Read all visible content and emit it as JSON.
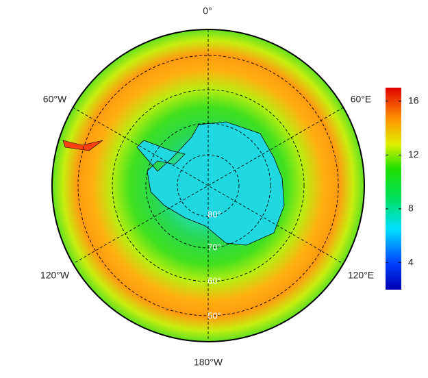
{
  "map": {
    "longitude_labels": [
      "0°",
      "60°E",
      "120°E",
      "180°W",
      "120°W",
      "60°W"
    ],
    "latitude_labels": [
      "80°",
      "70°",
      "60°",
      "50°"
    ],
    "colorbar": {
      "range": [
        2,
        17
      ],
      "ticks": [
        4,
        8,
        12,
        16
      ]
    }
  }
}
